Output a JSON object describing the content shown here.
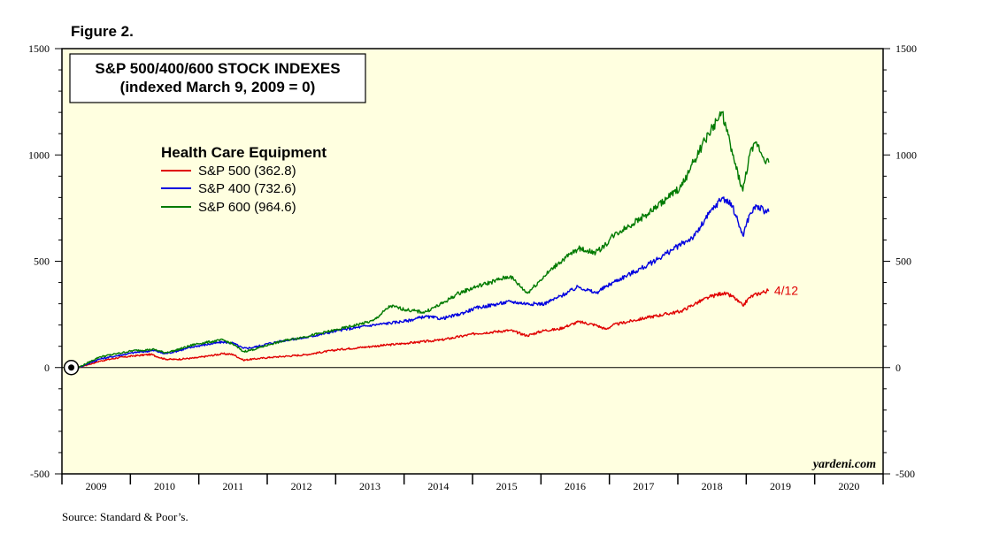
{
  "figure_label": "Figure 2.",
  "source": "Source: Standard & Poor’s.",
  "brand": "yardeni.com",
  "colors": {
    "background": "#FFFFE0",
    "s500": "#E00000",
    "s400": "#0000E0",
    "s600": "#007A00"
  },
  "chart_data": {
    "type": "line",
    "title": "S&P 500/400/600 STOCK INDEXES",
    "subtitle": "(indexed March 9, 2009 = 0)",
    "legend_title": "Health Care Equipment",
    "legend_position": "upper-left",
    "ylim": [
      -500,
      1500
    ],
    "y_ticks": [
      -500,
      0,
      500,
      1000,
      1500
    ],
    "x_ticks": [
      "2009",
      "2010",
      "2011",
      "2012",
      "2013",
      "2014",
      "2015",
      "2016",
      "2017",
      "2018",
      "2019",
      "2020"
    ],
    "xlim": [
      2008.95,
      2020.95
    ],
    "annotation": {
      "text": "4/12",
      "x": 2019.28,
      "y": 362.8
    },
    "start_marker": {
      "x": 2009.19,
      "y": 0
    },
    "series": [
      {
        "name": "S&P 500 (362.8)",
        "color": "#E00000",
        "x": [
          2009.19,
          2009.5,
          2009.75,
          2010.0,
          2010.25,
          2010.45,
          2010.6,
          2010.9,
          2011.3,
          2011.45,
          2011.6,
          2011.75,
          2012.0,
          2012.5,
          2013.0,
          2013.5,
          2014.0,
          2014.5,
          2015.0,
          2015.5,
          2015.75,
          2016.0,
          2016.2,
          2016.5,
          2016.75,
          2016.9,
          2017.0,
          2017.5,
          2018.0,
          2018.2,
          2018.4,
          2018.6,
          2018.75,
          2018.9,
          2019.0,
          2019.1,
          2019.28
        ],
        "y": [
          0,
          30,
          45,
          55,
          62,
          40,
          38,
          45,
          65,
          62,
          35,
          40,
          48,
          60,
          85,
          100,
          115,
          130,
          160,
          175,
          150,
          175,
          180,
          215,
          200,
          180,
          200,
          235,
          265,
          300,
          330,
          350,
          335,
          290,
          330,
          345,
          362.8
        ]
      },
      {
        "name": "S&P 400 (732.6)",
        "color": "#0000E0",
        "x": [
          2009.19,
          2009.5,
          2009.75,
          2010.0,
          2010.3,
          2010.45,
          2010.6,
          2010.9,
          2011.3,
          2011.45,
          2011.6,
          2011.75,
          2012.0,
          2012.25,
          2012.5,
          2013.0,
          2013.5,
          2014.0,
          2014.25,
          2014.5,
          2014.75,
          2015.0,
          2015.5,
          2015.75,
          2016.0,
          2016.2,
          2016.5,
          2016.75,
          2016.9,
          2017.0,
          2017.5,
          2018.0,
          2018.2,
          2018.4,
          2018.6,
          2018.75,
          2018.9,
          2019.0,
          2019.1,
          2019.2,
          2019.28
        ],
        "y": [
          0,
          40,
          55,
          70,
          80,
          65,
          75,
          100,
          120,
          115,
          90,
          95,
          115,
          130,
          140,
          175,
          200,
          220,
          240,
          230,
          250,
          280,
          310,
          300,
          300,
          330,
          380,
          350,
          380,
          400,
          480,
          580,
          620,
          720,
          800,
          760,
          620,
          720,
          760,
          740,
          732.6
        ]
      },
      {
        "name": "S&P 600 (964.6)",
        "color": "#007A00",
        "x": [
          2009.19,
          2009.5,
          2009.75,
          2010.0,
          2010.3,
          2010.45,
          2010.6,
          2010.9,
          2011.3,
          2011.45,
          2011.6,
          2011.75,
          2012.0,
          2012.25,
          2012.5,
          2013.0,
          2013.5,
          2013.75,
          2014.0,
          2014.25,
          2014.5,
          2014.75,
          2015.0,
          2015.5,
          2015.75,
          2016.0,
          2016.2,
          2016.5,
          2016.75,
          2016.9,
          2017.0,
          2017.5,
          2018.0,
          2018.2,
          2018.4,
          2018.6,
          2018.75,
          2018.9,
          2019.0,
          2019.1,
          2019.2,
          2019.28
        ],
        "y": [
          0,
          50,
          65,
          80,
          85,
          70,
          80,
          110,
          130,
          110,
          75,
          85,
          110,
          130,
          145,
          180,
          220,
          290,
          270,
          260,
          300,
          350,
          380,
          430,
          350,
          430,
          490,
          560,
          540,
          580,
          620,
          720,
          850,
          980,
          1100,
          1200,
          1000,
          830,
          1000,
          1060,
          990,
          964.6
        ]
      }
    ]
  }
}
